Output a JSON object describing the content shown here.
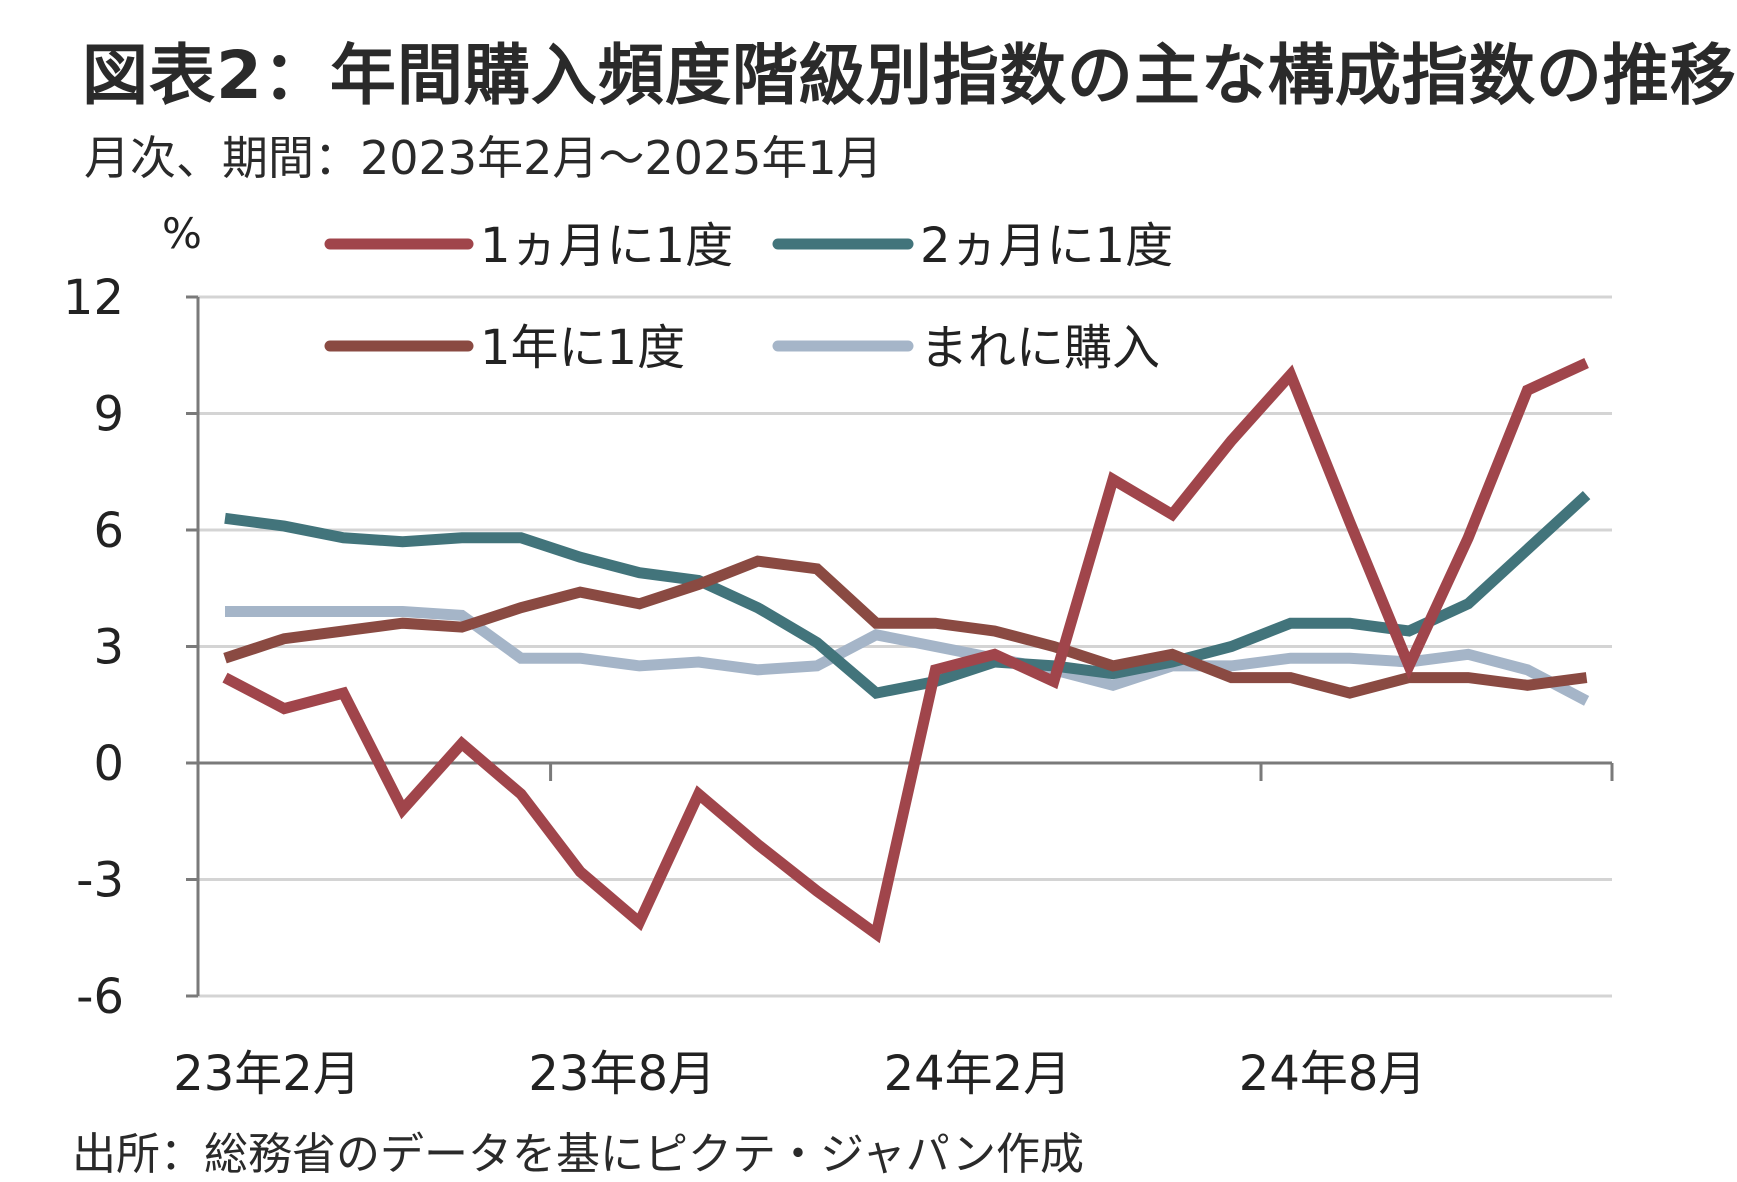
{
  "header": {
    "title": "図表2：年間購入頻度階級別指数の主な構成指数の推移",
    "subtitle": "月次、期間：2023年2月～2025年1月"
  },
  "footer": {
    "source": "出所：総務省のデータを基にピクテ・ジャパン作成"
  },
  "chart_data": {
    "type": "line",
    "y_unit": "%",
    "ylim": [
      -6,
      12
    ],
    "y_ticks": [
      12,
      9,
      6,
      3,
      0,
      -3,
      -6
    ],
    "y_tick_labels": [
      "12",
      "9",
      "6",
      "3",
      "0",
      "-3",
      "-6"
    ],
    "x": [
      "2023-02",
      "2023-03",
      "2023-04",
      "2023-05",
      "2023-06",
      "2023-07",
      "2023-08",
      "2023-09",
      "2023-10",
      "2023-11",
      "2023-12",
      "2024-01",
      "2024-02",
      "2024-03",
      "2024-04",
      "2024-05",
      "2024-06",
      "2024-07",
      "2024-08",
      "2024-09",
      "2024-10",
      "2024-11",
      "2024-12",
      "2025-01"
    ],
    "x_tick_labels": [
      {
        "x": "2023-02",
        "label": "23年2月"
      },
      {
        "x": "2023-08",
        "label": "23年8月"
      },
      {
        "x": "2024-02",
        "label": "24年2月"
      },
      {
        "x": "2024-08",
        "label": "24年8月"
      }
    ],
    "grid": true,
    "legend_position": "top",
    "series": [
      {
        "name": "1ヵ月に1度",
        "color": "#a0454b",
        "values": [
          2.2,
          1.4,
          1.8,
          -1.2,
          0.5,
          -0.8,
          -2.8,
          -4.1,
          -0.8,
          -2.1,
          -3.3,
          -4.4,
          2.4,
          2.8,
          2.1,
          7.3,
          6.4,
          8.3,
          10.0,
          6.2,
          2.5,
          5.8,
          9.6,
          10.3
        ]
      },
      {
        "name": "2ヵ月に1度",
        "color": "#42747b",
        "values": [
          6.3,
          6.1,
          5.8,
          5.7,
          5.8,
          5.8,
          5.3,
          4.9,
          4.7,
          4.0,
          3.1,
          1.8,
          2.1,
          2.6,
          2.5,
          2.3,
          2.6,
          3.0,
          3.6,
          3.6,
          3.4,
          4.1,
          5.5,
          6.9
        ]
      },
      {
        "name": "1年に1度",
        "color": "#8a4a42",
        "values": [
          2.7,
          3.2,
          3.4,
          3.6,
          3.5,
          4.0,
          4.4,
          4.1,
          4.6,
          5.2,
          5.0,
          3.6,
          3.6,
          3.4,
          3.0,
          2.5,
          2.8,
          2.2,
          2.2,
          1.8,
          2.2,
          2.2,
          2.0,
          2.2
        ]
      },
      {
        "name": "まれに購入",
        "color": "#a5b5c8",
        "values": [
          3.9,
          3.9,
          3.9,
          3.9,
          3.8,
          2.7,
          2.7,
          2.5,
          2.6,
          2.4,
          2.5,
          3.3,
          3.0,
          2.7,
          2.4,
          2.0,
          2.5,
          2.5,
          2.7,
          2.7,
          2.6,
          2.8,
          2.4,
          1.6
        ]
      }
    ]
  }
}
